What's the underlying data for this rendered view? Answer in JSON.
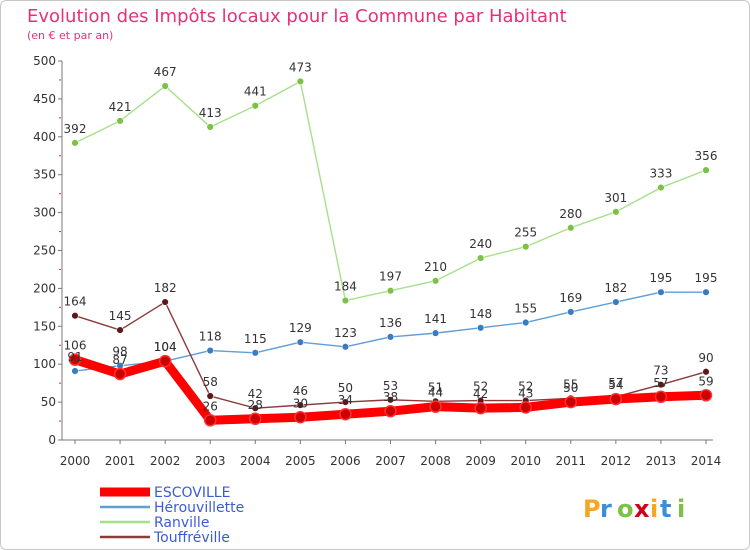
{
  "chart_data": {
    "type": "line",
    "title": "Evolution des Impôts locaux pour la Commune par Habitant",
    "subtitle": "(en € et par an)",
    "x": [
      "2000",
      "2001",
      "2002",
      "2003",
      "2004",
      "2005",
      "2006",
      "2007",
      "2008",
      "2009",
      "2010",
      "2011",
      "2012",
      "2013",
      "2014"
    ],
    "ylim": [
      0,
      500
    ],
    "yticks": [
      0,
      50,
      100,
      150,
      200,
      250,
      300,
      350,
      400,
      450,
      500
    ],
    "grid": false,
    "legend_position": "bottom-left",
    "series": [
      {
        "name": "ESCOVILLE",
        "color": "#ff0000",
        "marker": "#cc0000",
        "values": [
          106,
          87,
          104,
          26,
          28,
          30,
          34,
          38,
          44,
          42,
          43,
          50,
          54,
          57,
          59
        ],
        "labels": [
          "106",
          "87",
          "104",
          "26",
          "28",
          "30",
          "34",
          "38",
          "44",
          "42",
          "43",
          "50",
          "54",
          "57",
          "59"
        ]
      },
      {
        "name": "Hérouvillette",
        "color": "#5f9ed6",
        "marker": "#3a7cc0",
        "values": [
          91,
          98,
          104,
          118,
          115,
          129,
          123,
          136,
          141,
          148,
          155,
          169,
          182,
          195,
          195
        ],
        "labels": [
          "91",
          "98",
          "104",
          "118",
          "115",
          "129",
          "123",
          "136",
          "141",
          "148",
          "155",
          "169",
          "182",
          "195",
          "195"
        ]
      },
      {
        "name": "Ranville",
        "color": "#a6e08a",
        "marker": "#7cc143",
        "values": [
          392,
          421,
          467,
          413,
          441,
          473,
          184,
          197,
          210,
          240,
          255,
          280,
          301,
          333,
          356
        ],
        "labels": [
          "392",
          "421",
          "467",
          "413",
          "441",
          "473",
          "184",
          "197",
          "210",
          "240",
          "255",
          "280",
          "301",
          "333",
          "356"
        ]
      },
      {
        "name": "Touffréville",
        "color": "#8b3a3a",
        "marker": "#5a1a1a",
        "values": [
          164,
          145,
          182,
          58,
          42,
          46,
          50,
          53,
          51,
          52,
          52,
          55,
          57,
          73,
          90
        ],
        "labels": [
          "164",
          "145",
          "182",
          "58",
          "42",
          "46",
          "50",
          "53",
          "51",
          "52",
          "52",
          "55",
          "57",
          "73",
          "90"
        ]
      }
    ]
  },
  "branding": {
    "logo_text": "Proxiti",
    "logo_colors": [
      "#f5a623",
      "#3b8fd9",
      "#7cc143",
      "#d0021b",
      "#f5a623",
      "#3b8fd9",
      "#7cc143"
    ]
  }
}
